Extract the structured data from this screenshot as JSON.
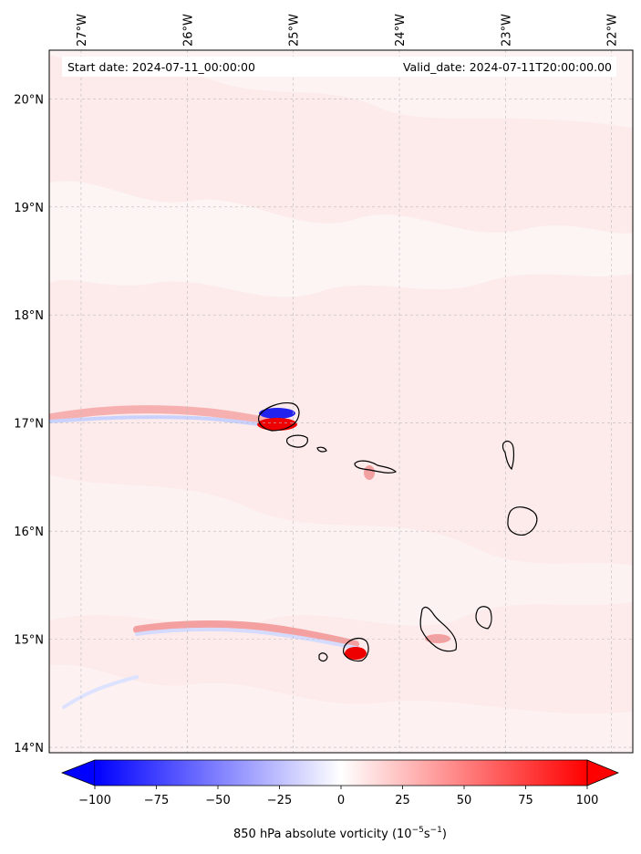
{
  "header": {
    "start_date": "Start date: 2024-07-11_00:00:00",
    "valid_date": "Valid_date: 2024-07-11T20:00:00.00"
  },
  "map": {
    "lon_range": [
      -27.3,
      -21.8
    ],
    "lat_range": [
      13.95,
      20.45
    ],
    "lon_ticks": [
      {
        "value": -27,
        "label": "27°W"
      },
      {
        "value": -26,
        "label": "26°W"
      },
      {
        "value": -25,
        "label": "25°W"
      },
      {
        "value": -24,
        "label": "24°W"
      },
      {
        "value": -23,
        "label": "23°W"
      },
      {
        "value": -22,
        "label": "22°W"
      }
    ],
    "lat_ticks": [
      {
        "value": 20,
        "label": "20°N"
      },
      {
        "value": 19,
        "label": "19°N"
      },
      {
        "value": 18,
        "label": "18°N"
      },
      {
        "value": 17,
        "label": "17°N"
      },
      {
        "value": 16,
        "label": "16°N"
      },
      {
        "value": 15,
        "label": "15°N"
      },
      {
        "value": 14,
        "label": "14°N"
      }
    ],
    "gridlines": true,
    "background_color": "#fde9e9"
  },
  "colorbar": {
    "label_main": "850 hPa absolute vorticity (10",
    "label_exp1": "−5",
    "label_mid": "s",
    "label_exp2": "−1",
    "label_end": ")",
    "min": -100,
    "max": 100,
    "cmap": "bwr",
    "ticks": [
      {
        "value": -100,
        "label": "−100"
      },
      {
        "value": -75,
        "label": "−75"
      },
      {
        "value": -50,
        "label": "−50"
      },
      {
        "value": -25,
        "label": "−25"
      },
      {
        "value": 0,
        "label": "0"
      },
      {
        "value": 25,
        "label": "25"
      },
      {
        "value": 50,
        "label": "50"
      },
      {
        "value": 75,
        "label": "75"
      },
      {
        "value": 100,
        "label": "100"
      }
    ]
  }
}
